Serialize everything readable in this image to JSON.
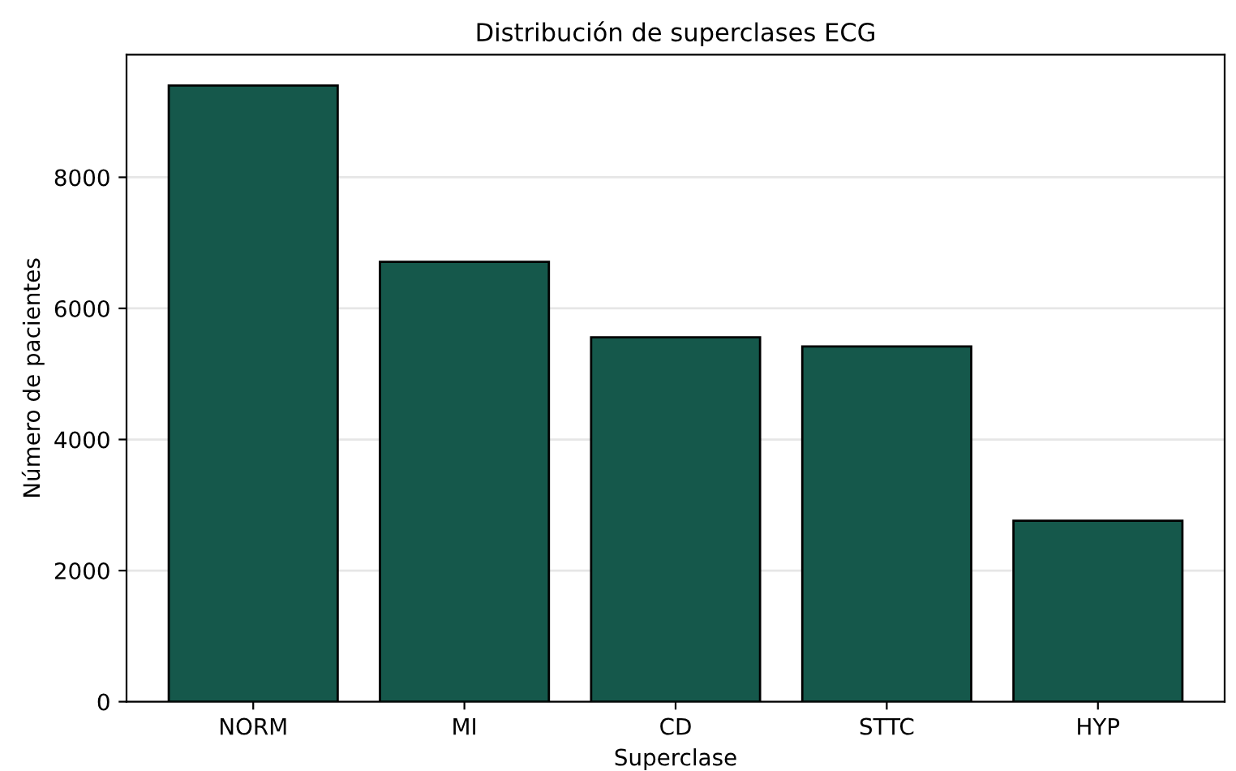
{
  "chart_data": {
    "type": "bar",
    "title": "Distribución de superclases ECG",
    "xlabel": "Superclase",
    "ylabel": "Número de pacientes",
    "categories": [
      "NORM",
      "MI",
      "CD",
      "STTC",
      "HYP"
    ],
    "values": [
      9400,
      6710,
      5560,
      5420,
      2760
    ],
    "color": "#15584b",
    "ylim": [
      0,
      9870
    ],
    "yticks": [
      0,
      2000,
      4000,
      6000,
      8000
    ],
    "grid": "y"
  }
}
